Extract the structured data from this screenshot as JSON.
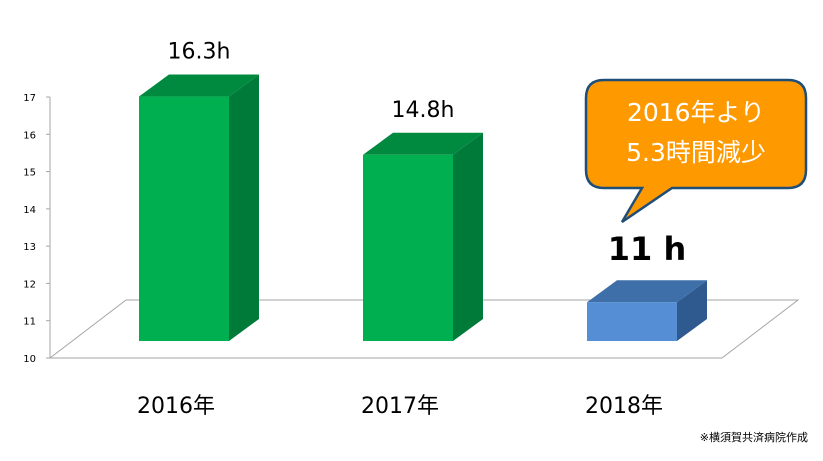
{
  "chart_data": {
    "type": "bar",
    "categories": [
      "2016年",
      "2017年",
      "2018年"
    ],
    "values": [
      16.3,
      14.8,
      11
    ],
    "data_labels": [
      "16.3h",
      "14.8h",
      "11 h"
    ],
    "ylim": [
      10,
      17
    ],
    "yticks": [
      "10",
      "11",
      "12",
      "13",
      "14",
      "15",
      "16",
      "17"
    ],
    "grid": false,
    "legend": "none",
    "bar_colors": [
      "#00b050",
      "#00b050",
      "#558ed5"
    ],
    "bar_side_colors": [
      "#007a38",
      "#007a38",
      "#2e5a8f"
    ],
    "bar_top_colors": [
      "#008a40",
      "#008a40",
      "#3f6fa8"
    ],
    "highlight_index": 2
  },
  "callout": {
    "line1": "2016年より",
    "line2": "5.3時間減少",
    "fill": "#ff9900",
    "border": "#1f4e79"
  },
  "credit": "※横須賀共済病院作成"
}
